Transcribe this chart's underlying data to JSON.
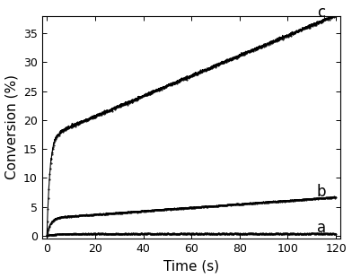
{
  "title": "",
  "xlabel": "Time (s)",
  "ylabel": "Conversion (%)",
  "xlim": [
    -2,
    122
  ],
  "ylim": [
    -0.5,
    38
  ],
  "yticks": [
    0,
    5,
    10,
    15,
    20,
    25,
    30,
    35
  ],
  "xticks": [
    0,
    20,
    40,
    60,
    80,
    100,
    120
  ],
  "curve_c_label": "c",
  "curve_b_label": "b",
  "curve_a_label": "a",
  "line_color": "#000000",
  "background_color": "#ffffff",
  "label_fontsize": 11,
  "tick_fontsize": 9,
  "annotation_fontsize": 12,
  "curve_c_end": 37.0,
  "curve_b_end": 6.5,
  "curve_a_end": 0.4,
  "curve_c_fast_amp": 18.0,
  "curve_c_fast_rate": 0.75,
  "curve_c_slow_rate": 0.175,
  "curve_c_slow_start": 5.0,
  "curve_b_fast_amp": 3.2,
  "curve_b_fast_rate": 0.65,
  "curve_b_slow_rate": 0.03,
  "curve_b_slow_start": 5.0,
  "curve_a_amp": 0.35,
  "curve_a_rate": 0.25
}
